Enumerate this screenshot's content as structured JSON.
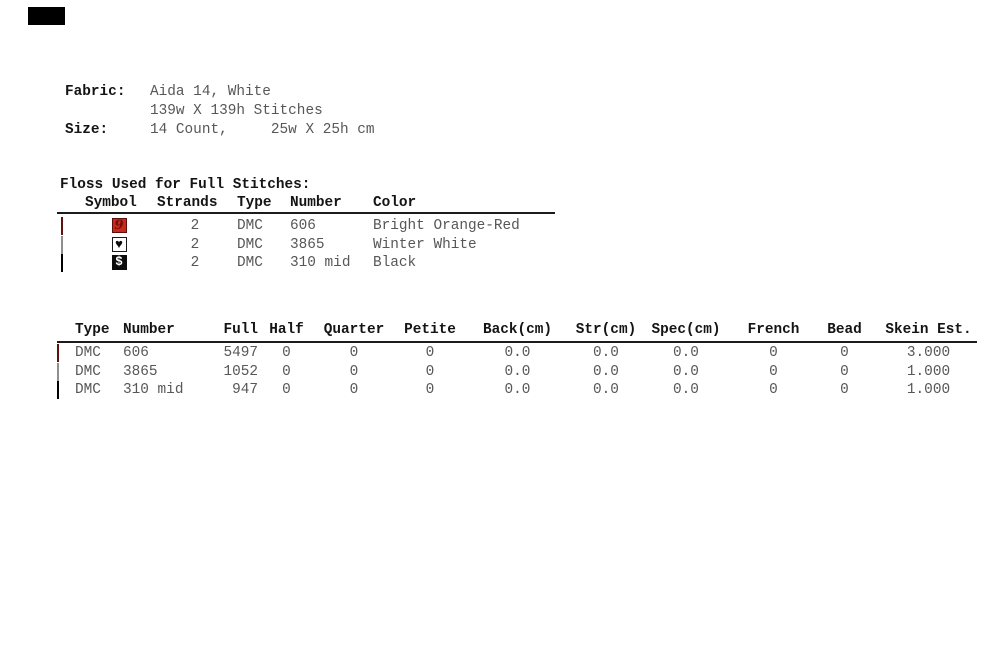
{
  "fabric_info": {
    "fabric_label": "Fabric:",
    "fabric_value_line1": "Aida 14, White",
    "fabric_value_line2": "139w X 139h Stitches",
    "size_label": "Size:",
    "size_value": "14 Count,     25w X 25h cm"
  },
  "floss_table": {
    "title": "Floss Used for Full Stitches:",
    "headers": {
      "symbol": "Symbol",
      "strands": "Strands",
      "type": "Type",
      "number": "Number",
      "color": "Color"
    },
    "rows": [
      {
        "swatch_color": "#c9281c",
        "symbol_glyph": "9",
        "symbol_bg": "#c9281c",
        "strands": "2",
        "type": "DMC",
        "number": "606",
        "color_name": "Bright Orange-Red"
      },
      {
        "swatch_color": "#fcfcfc",
        "symbol_glyph": "♥",
        "symbol_bg": "#ffffff",
        "strands": "2",
        "type": "DMC",
        "number": "3865",
        "color_name": "Winter White"
      },
      {
        "swatch_color": "#0e0e0e",
        "symbol_glyph": "$",
        "symbol_bg": "#0c0c0c",
        "strands": "2",
        "type": "DMC",
        "number": "310 mid",
        "color_name": "Black"
      }
    ]
  },
  "usage_table": {
    "headers": {
      "type": "Type",
      "number": "Number",
      "full": "Full",
      "half": "Half",
      "quarter": "Quarter",
      "petite": "Petite",
      "back": "Back(cm)",
      "str": "Str(cm)",
      "spec": "Spec(cm)",
      "french": "French",
      "bead": "Bead",
      "skein": "Skein Est."
    },
    "rows": [
      {
        "swatch_color": "#c9281c",
        "type": "DMC",
        "number": "606",
        "full": "5497",
        "half": "0",
        "quarter": "0",
        "petite": "0",
        "back": "0.0",
        "str": "0.0",
        "spec": "0.0",
        "french": "0",
        "bead": "0",
        "skein": "3.000"
      },
      {
        "swatch_color": "#fcfcfc",
        "type": "DMC",
        "number": "3865",
        "full": "1052",
        "half": "0",
        "quarter": "0",
        "petite": "0",
        "back": "0.0",
        "str": "0.0",
        "spec": "0.0",
        "french": "0",
        "bead": "0",
        "skein": "1.000"
      },
      {
        "swatch_color": "#0e0e0e",
        "type": "DMC",
        "number": "310 mid",
        "full": "947",
        "half": "0",
        "quarter": "0",
        "petite": "0",
        "back": "0.0",
        "str": "0.0",
        "spec": "0.0",
        "french": "0",
        "bead": "0",
        "skein": "1.000"
      }
    ]
  },
  "colors": {
    "swatch_red": "#c9281c",
    "swatch_white": "#fcfcfc",
    "swatch_black": "#0e0e0e",
    "symbol_9_glyph": "#6d1009",
    "body_text": "#575757",
    "heading_text": "#141414",
    "rule": "#1c1c1c"
  }
}
